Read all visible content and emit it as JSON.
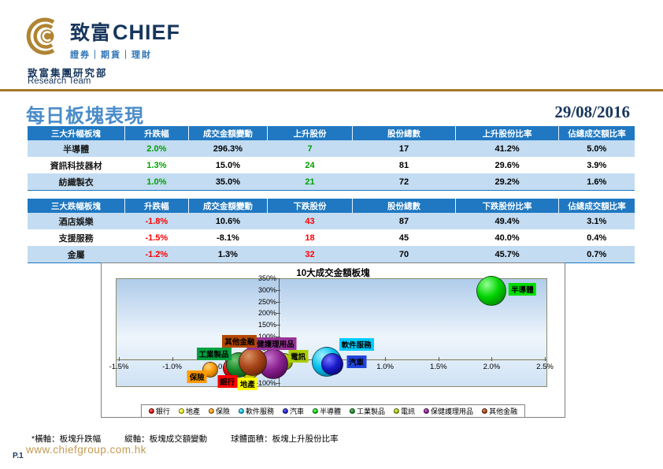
{
  "header": {
    "brand_cn": "致富",
    "brand_en": "CHIEF",
    "tagline": "證券｜期貨｜理財",
    "dept_cn": "致富集團研究部",
    "dept_en": "Research Team",
    "gold_color": "#a6782b",
    "navy_color": "#17365d"
  },
  "page": {
    "title": "每日板塊表現",
    "date": "29/08/2016",
    "website": "www.chiefgroup.com.hk",
    "page_number": "P.1",
    "footnotes": [
      "*橫軸：板塊升跌幅",
      "縱軸：板塊成交額變動",
      "球體面積：板塊上升股份比率"
    ]
  },
  "gainers_table": {
    "headers": [
      "三大升幅板塊",
      "升跌幅",
      "成交金額變動",
      "上升股份",
      "股份總數",
      "上升股份比率",
      "佔總成交額比率"
    ],
    "rows": [
      [
        "半導體",
        "2.0%",
        "296.3%",
        "7",
        "17",
        "41.2%",
        "5.0%"
      ],
      [
        "資訊科技器材",
        "1.3%",
        "15.0%",
        "24",
        "81",
        "29.6%",
        "3.9%"
      ],
      [
        "紡織製衣",
        "1.0%",
        "35.0%",
        "21",
        "72",
        "29.2%",
        "1.6%"
      ]
    ],
    "direction_color": "#00a000"
  },
  "losers_table": {
    "headers": [
      "三大跌幅板塊",
      "升跌幅",
      "成交金額變動",
      "下跌股份",
      "股份總數",
      "下跌股份比率",
      "佔總成交額比率"
    ],
    "rows": [
      [
        "酒店娛樂",
        "-1.8%",
        "10.6%",
        "43",
        "87",
        "49.4%",
        "3.1%"
      ],
      [
        "支援服務",
        "-1.5%",
        "-8.1%",
        "18",
        "45",
        "40.0%",
        "0.4%"
      ],
      [
        "金屬",
        "-1.2%",
        "1.3%",
        "32",
        "70",
        "45.7%",
        "0.7%"
      ]
    ],
    "direction_color": "#ff0000"
  },
  "chart_data": {
    "type": "scatter",
    "subtype": "bubble",
    "title": "10大成交金額板塊",
    "xlabel": "板塊升跌幅",
    "ylabel": "板塊成交額變動",
    "size_meaning": "板塊上升股份比率",
    "xlim": [
      -1.5,
      2.5
    ],
    "ylim": [
      -100,
      350
    ],
    "x_ticks": [
      -1.5,
      -1.0,
      -0.5,
      0.0,
      0.5,
      1.0,
      1.5,
      2.0,
      2.5
    ],
    "y_ticks": [
      350,
      300,
      250,
      200,
      150,
      100,
      50,
      0,
      -50,
      -100
    ],
    "grid": false,
    "legend_position": "bottom",
    "series": [
      {
        "name": "銀行",
        "x": -0.43,
        "y": -35,
        "r": 13,
        "base": "#e00000",
        "light": "#ff8585",
        "dark": "#7a0000",
        "chip": "#ff0000",
        "label_dx": -7,
        "label_dy": 17
      },
      {
        "name": "地產",
        "x": -0.27,
        "y": -42,
        "r": 12,
        "base": "#f0f000",
        "light": "#ffffb0",
        "dark": "#8f8f00",
        "chip": "#ffff00",
        "label_dx": -3,
        "label_dy": 18
      },
      {
        "name": "保險",
        "x": -0.64,
        "y": -42,
        "r": 10,
        "base": "#ff9900",
        "light": "#ffd485",
        "dark": "#8f5600",
        "chip": "#ff9900",
        "label_dx": -17,
        "label_dy": 9
      },
      {
        "name": "軟件服務",
        "x": 0.45,
        "y": -8,
        "r": 19,
        "base": "#00c0f0",
        "light": "#a5f0ff",
        "dark": "#006080",
        "chip": "#00ccff",
        "label_dx": 38,
        "label_dy": -22
      },
      {
        "name": "汽車",
        "x": 0.5,
        "y": -18,
        "r": 14,
        "base": "#1a1acc",
        "light": "#7575ff",
        "dark": "#000055",
        "chip": "#2244dd",
        "label_dx": 31,
        "label_dy": -3
      },
      {
        "name": "半導體",
        "x": 2.0,
        "y": 296.3,
        "r": 19,
        "base": "#00d400",
        "light": "#95ff95",
        "dark": "#007000",
        "chip": "#00dd00",
        "label_dx": 39,
        "label_dy": -2
      },
      {
        "name": "工業製品",
        "x": -0.38,
        "y": -22,
        "r": 16,
        "base": "#188a2a",
        "light": "#75c575",
        "dark": "#063f10",
        "chip": "#00a040",
        "label_dx": -31,
        "label_dy": -14
      },
      {
        "name": "電訊",
        "x": 0.05,
        "y": -8,
        "r": 11,
        "base": "#a8cc00",
        "light": "#e3f075",
        "dark": "#5a6e00",
        "chip": "#aacc00",
        "label_dx": 18,
        "label_dy": -7
      },
      {
        "name": "保健護理用品",
        "x": -0.05,
        "y": -18,
        "r": 19,
        "base": "#8a2090",
        "light": "#c575cc",
        "dark": "#3d0042",
        "chip": "#993399",
        "label_dx": -2,
        "label_dy": -26
      },
      {
        "name": "其他金融",
        "x": -0.24,
        "y": -8,
        "r": 18,
        "base": "#a84418",
        "light": "#d89565",
        "dark": "#511a00",
        "chip": "#b34700",
        "label_dx": -17,
        "label_dy": -26
      }
    ]
  }
}
